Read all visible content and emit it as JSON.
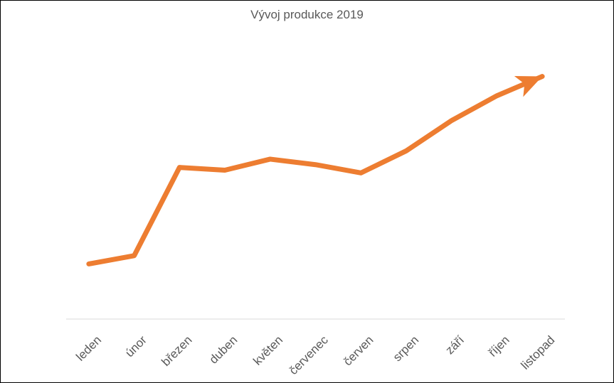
{
  "chart_data": {
    "type": "line",
    "title": "Vývoj produkce 2019",
    "xlabel": "",
    "ylabel": "",
    "categories": [
      "leden",
      "únor",
      "březen",
      "duben",
      "květen",
      "červenec",
      "červen",
      "srpen",
      "září",
      "říjen",
      "listopad"
    ],
    "series": [
      {
        "values": [
          20,
          23,
          55,
          54,
          58,
          56,
          53,
          61,
          72,
          81,
          88
        ]
      }
    ],
    "ylim": [
      0,
      100
    ],
    "grid": false,
    "legend": "none",
    "line_color": "#ED7D31",
    "axis_color": "#D9D9D9",
    "end_marker": "arrow"
  }
}
